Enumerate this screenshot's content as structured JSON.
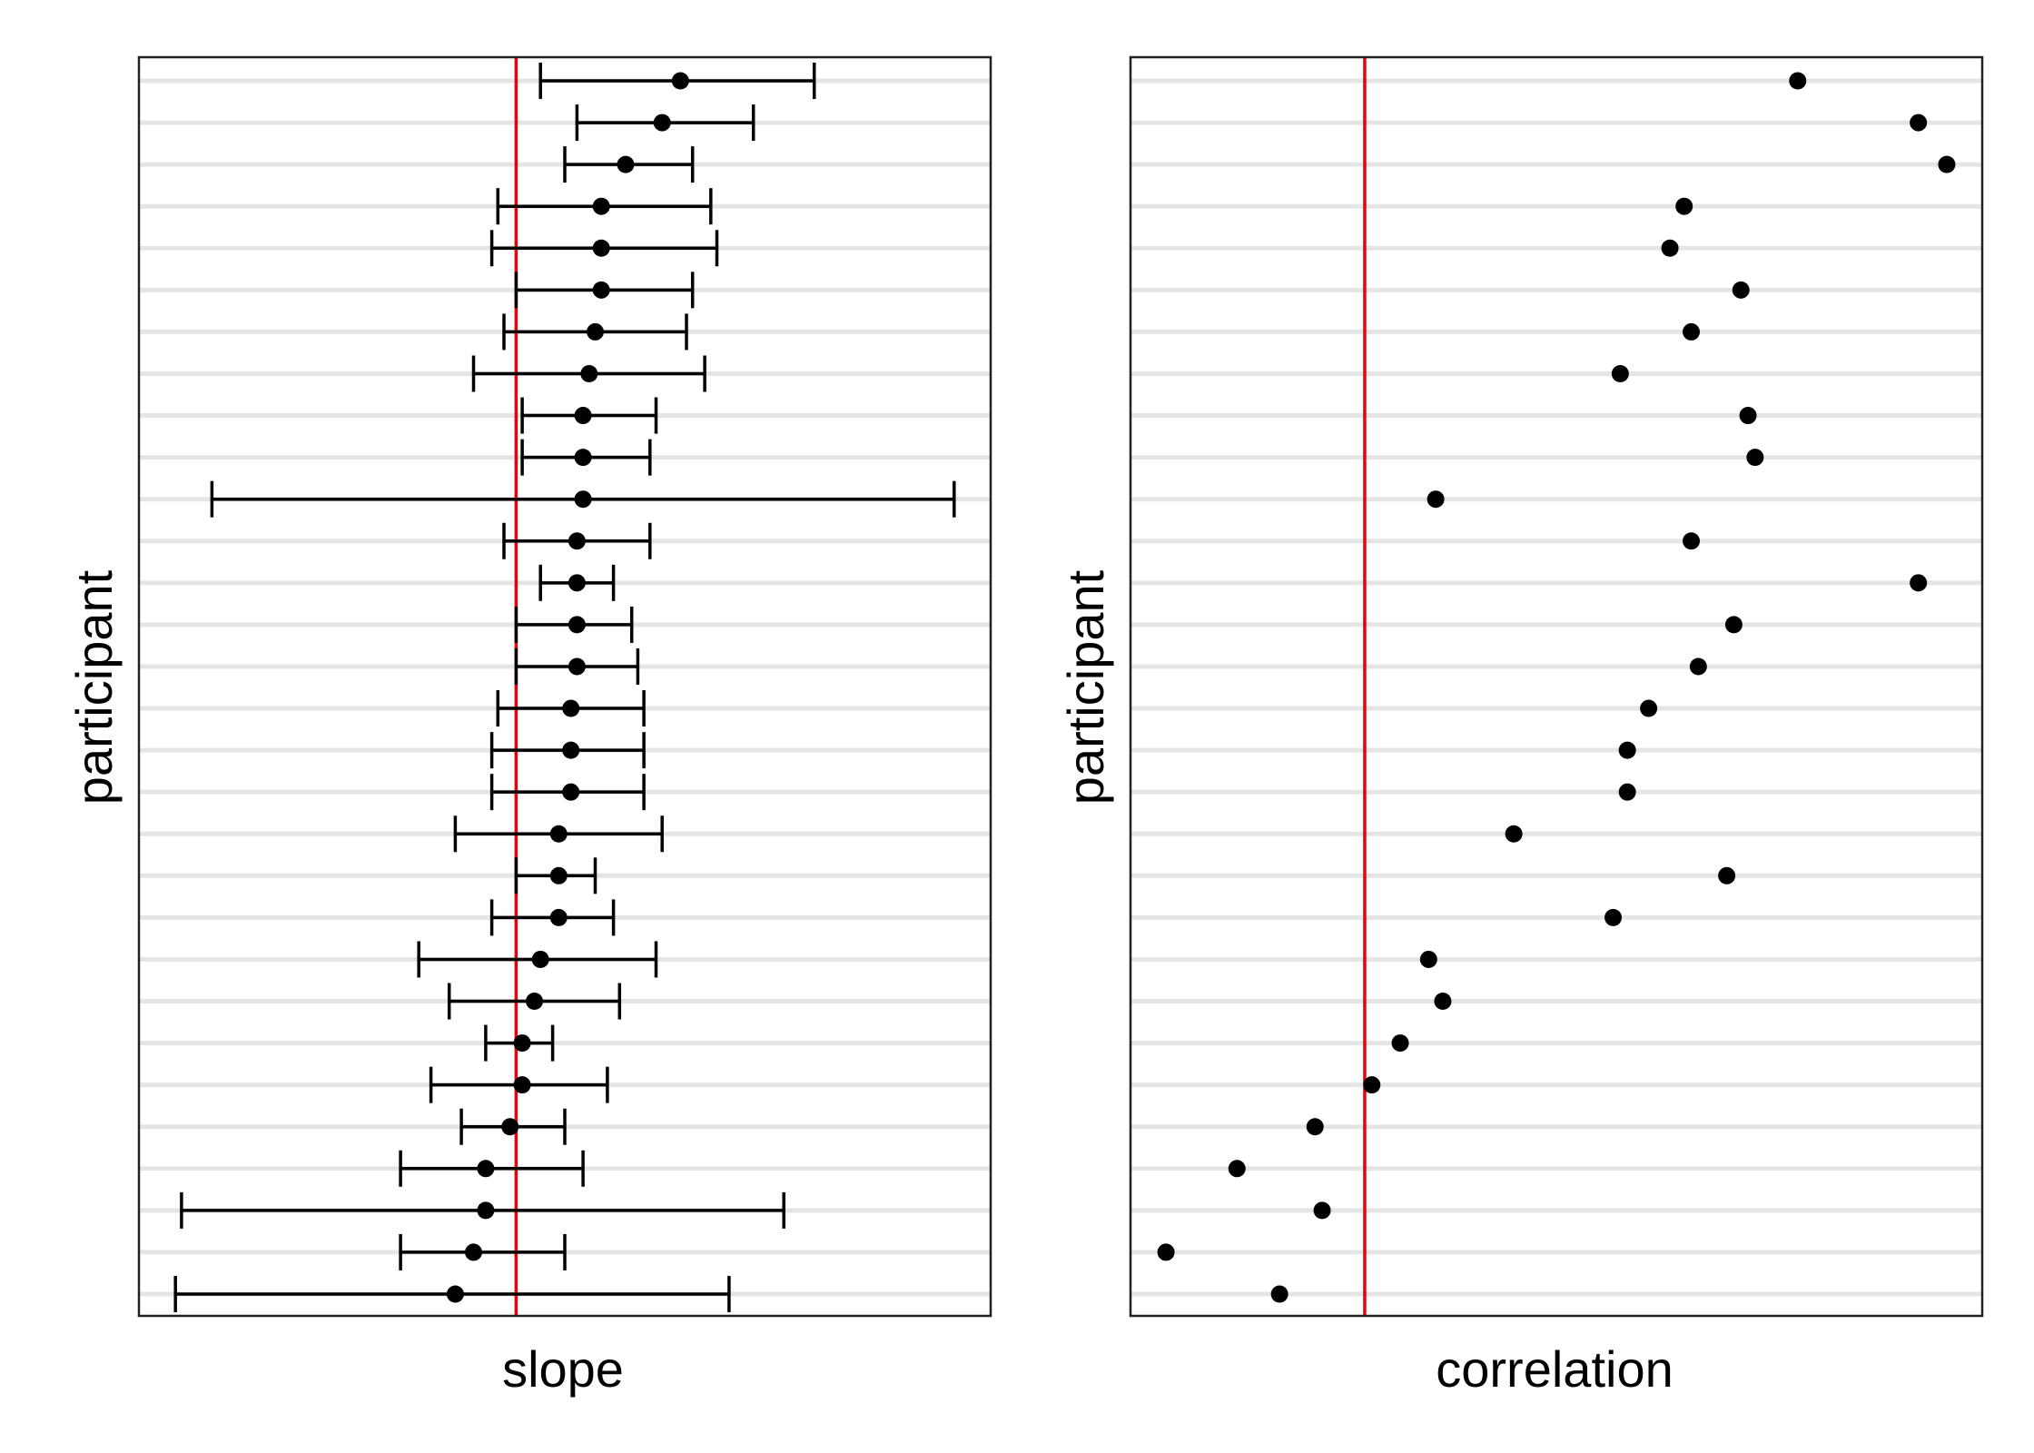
{
  "chart_data": [
    {
      "type": "scatter",
      "subtype": "point-with-error-bars",
      "xlabel": "slope",
      "ylabel": "participant",
      "x_tick_labels": "none",
      "y_tick_labels": "none",
      "xlim": [
        -0.55,
        0.85
      ],
      "reference_line_x": 0.07,
      "reference_line_color": "#e8000b",
      "grid": "horizontal",
      "legend": "none",
      "rows": 30,
      "estimate": [
        0.34,
        0.31,
        0.25,
        0.21,
        0.21,
        0.21,
        0.2,
        0.19,
        0.18,
        0.18,
        0.18,
        0.17,
        0.17,
        0.17,
        0.17,
        0.16,
        0.16,
        0.16,
        0.14,
        0.14,
        0.14,
        0.11,
        0.1,
        0.08,
        0.08,
        0.06,
        0.02,
        0.02,
        0.0,
        -0.03
      ],
      "lower": [
        0.11,
        0.17,
        0.15,
        0.04,
        0.03,
        0.07,
        0.05,
        0.0,
        0.08,
        0.08,
        -0.43,
        0.05,
        0.11,
        0.07,
        0.07,
        0.04,
        0.03,
        0.03,
        -0.03,
        0.07,
        0.03,
        -0.09,
        -0.04,
        0.02,
        -0.07,
        -0.02,
        -0.12,
        -0.48,
        -0.12,
        -0.49
      ],
      "upper": [
        0.56,
        0.46,
        0.36,
        0.39,
        0.4,
        0.36,
        0.35,
        0.38,
        0.3,
        0.29,
        0.79,
        0.29,
        0.23,
        0.26,
        0.27,
        0.28,
        0.28,
        0.28,
        0.31,
        0.2,
        0.23,
        0.3,
        0.24,
        0.13,
        0.22,
        0.15,
        0.18,
        0.51,
        0.15,
        0.42
      ]
    },
    {
      "type": "scatter",
      "xlabel": "correlation",
      "ylabel": "participant",
      "x_tick_labels": "none",
      "y_tick_labels": "none",
      "xlim": [
        -0.2,
        1.0
      ],
      "reference_line_x": 0.13,
      "reference_line_color": "#e8000b",
      "grid": "horizontal",
      "legend": "none",
      "rows": 30,
      "values": [
        0.74,
        0.91,
        0.95,
        0.58,
        0.56,
        0.66,
        0.59,
        0.49,
        0.67,
        0.68,
        0.23,
        0.59,
        0.91,
        0.65,
        0.6,
        0.53,
        0.5,
        0.5,
        0.34,
        0.64,
        0.48,
        0.22,
        0.24,
        0.18,
        0.14,
        0.06,
        -0.05,
        0.07,
        -0.15,
        0.01
      ]
    }
  ]
}
